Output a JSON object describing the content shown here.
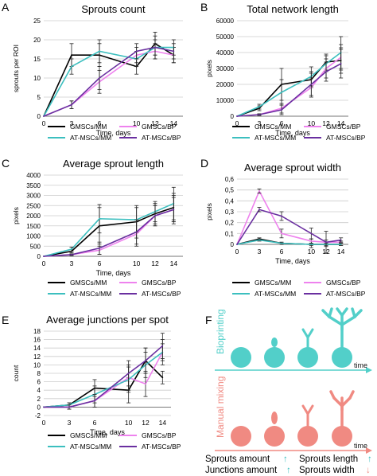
{
  "colors": {
    "gmsc_mm": "#000000",
    "gmsc_bp": "#ee82ee",
    "at_mm": "#3cbfbf",
    "at_bp": "#6a2fa0",
    "teal": "#52cfc9",
    "salmon": "#f08a82",
    "grid": "#cccccc"
  },
  "legend": [
    "GMSCs/MM",
    "GMSCs/BP",
    "AT-MSCs/MM",
    "AT-MSCs/BP"
  ],
  "chart_data": [
    {
      "panel": "A",
      "type": "line",
      "title": "Sprouts count",
      "xlabel": "Time, days",
      "ylabel": "sprouts per ROI",
      "x": [
        0,
        3,
        6,
        10,
        12,
        14
      ],
      "ylim": [
        0,
        25
      ],
      "yticks": [
        0,
        5,
        10,
        15,
        20,
        25
      ],
      "series": [
        {
          "name": "GMSCs/MM",
          "values": [
            0,
            16,
            16,
            13,
            19,
            16
          ],
          "err": [
            0,
            3,
            3,
            2,
            3,
            2
          ]
        },
        {
          "name": "GMSCs/BP",
          "values": [
            0,
            3,
            9,
            16,
            17,
            16
          ],
          "err": [
            0,
            1,
            3,
            2,
            2,
            2
          ]
        },
        {
          "name": "AT-MSCs/MM",
          "values": [
            0,
            13,
            17,
            15,
            18,
            18
          ],
          "err": [
            0,
            2,
            3,
            2,
            2,
            2
          ]
        },
        {
          "name": "AT-MSCs/BP",
          "values": [
            0,
            3,
            10,
            17,
            18,
            17
          ],
          "err": [
            0,
            1,
            3,
            2,
            3,
            2
          ]
        }
      ]
    },
    {
      "panel": "B",
      "type": "line",
      "title": "Total network length",
      "xlabel": "Time, days",
      "ylabel": "pixels",
      "x": [
        0,
        3,
        6,
        10,
        12,
        14
      ],
      "ylim": [
        0,
        60000
      ],
      "yticks": [
        0,
        10000,
        20000,
        30000,
        40000,
        50000,
        60000
      ],
      "series": [
        {
          "name": "GMSCs/MM",
          "values": [
            0,
            5000,
            20000,
            23000,
            34000,
            35000
          ],
          "err": [
            0,
            1500,
            10000,
            5000,
            5000,
            8000
          ]
        },
        {
          "name": "GMSCs/BP",
          "values": [
            0,
            1000,
            5000,
            18000,
            30000,
            37000
          ],
          "err": [
            0,
            500,
            3000,
            6000,
            6000,
            8000
          ]
        },
        {
          "name": "AT-MSCs/MM",
          "values": [
            0,
            6000,
            15000,
            25000,
            33000,
            40000
          ],
          "err": [
            0,
            1500,
            8000,
            6000,
            5000,
            10000
          ]
        },
        {
          "name": "AT-MSCs/BP",
          "values": [
            0,
            1000,
            4000,
            20000,
            28000,
            33000
          ],
          "err": [
            0,
            500,
            3000,
            7000,
            6000,
            9000
          ]
        }
      ]
    },
    {
      "panel": "C",
      "type": "line",
      "title": "Average sprout length",
      "xlabel": "Time, days",
      "ylabel": "pixels",
      "x": [
        0,
        3,
        6,
        10,
        12,
        14
      ],
      "ylim": [
        0,
        4000
      ],
      "yticks": [
        0,
        500,
        1000,
        1500,
        2000,
        2500,
        3000,
        3500,
        4000
      ],
      "series": [
        {
          "name": "GMSCs/MM",
          "values": [
            0,
            250,
            1500,
            1700,
            2100,
            2400
          ],
          "err": [
            0,
            80,
            900,
            800,
            500,
            700
          ]
        },
        {
          "name": "GMSCs/BP",
          "values": [
            0,
            80,
            300,
            1100,
            2000,
            2300
          ],
          "err": [
            0,
            40,
            200,
            600,
            500,
            600
          ]
        },
        {
          "name": "AT-MSCs/MM",
          "values": [
            0,
            350,
            1850,
            1800,
            2200,
            2600
          ],
          "err": [
            0,
            100,
            700,
            600,
            500,
            800
          ]
        },
        {
          "name": "AT-MSCs/BP",
          "values": [
            0,
            80,
            400,
            1200,
            2000,
            2300
          ],
          "err": [
            0,
            40,
            300,
            600,
            500,
            700
          ]
        }
      ]
    },
    {
      "panel": "D",
      "type": "line",
      "title": "Average sprout width",
      "xlabel": "Time, days",
      "ylabel": "pixels",
      "x": [
        0,
        3,
        6,
        10,
        12,
        14
      ],
      "ylim": [
        0,
        0.6
      ],
      "yticks": [
        0,
        0.1,
        0.2,
        0.3,
        0.4,
        0.5,
        0.6
      ],
      "ytick_labels": [
        "0",
        "0,1",
        "0,2",
        "0,3",
        "0,4",
        "0,5",
        "0,6"
      ],
      "series": [
        {
          "name": "GMSCs/MM",
          "values": [
            0,
            0.05,
            0.01,
            0,
            0,
            0
          ],
          "err": [
            0,
            0.01,
            0.01,
            0.03,
            0.02,
            0.01
          ]
        },
        {
          "name": "GMSCs/BP",
          "values": [
            0,
            0.49,
            0.1,
            0.03,
            0.02,
            0.02
          ],
          "err": [
            0,
            0.02,
            0.04,
            0.02,
            0.02,
            0.01
          ]
        },
        {
          "name": "AT-MSCs/MM",
          "values": [
            0,
            0.04,
            0.01,
            0,
            0,
            0
          ],
          "err": [
            0,
            0.01,
            0.01,
            0.01,
            0.01,
            0.01
          ]
        },
        {
          "name": "AT-MSCs/BP",
          "values": [
            0,
            0.32,
            0.26,
            0.1,
            0.02,
            0.04
          ],
          "err": [
            0,
            0.02,
            0.04,
            0.05,
            0.1,
            0.02
          ]
        }
      ]
    },
    {
      "panel": "E",
      "type": "line",
      "title": "Average junctions per spot",
      "xlabel": "Time, days",
      "ylabel": "count",
      "x": [
        0,
        3,
        6,
        10,
        12,
        14
      ],
      "ylim": [
        -2,
        18
      ],
      "yticks": [
        -2,
        0,
        2,
        4,
        6,
        8,
        10,
        12,
        14,
        16,
        18
      ],
      "series": [
        {
          "name": "GMSCs/MM",
          "values": [
            0,
            0.5,
            4.5,
            4,
            11,
            7
          ],
          "err": [
            0,
            0.5,
            2,
            3,
            3,
            1.5
          ]
        },
        {
          "name": "GMSCs/BP",
          "values": [
            0,
            0,
            1.5,
            7,
            5.5,
            13
          ],
          "err": [
            0,
            0.5,
            1.5,
            3,
            3,
            2
          ]
        },
        {
          "name": "AT-MSCs/MM",
          "values": [
            0,
            0.5,
            3,
            6.5,
            10,
            13
          ],
          "err": [
            0,
            0.5,
            2,
            3,
            3,
            3
          ]
        },
        {
          "name": "AT-MSCs/BP",
          "values": [
            0,
            0,
            1.5,
            8,
            11,
            14.5
          ],
          "err": [
            0,
            0.5,
            1.5,
            3,
            3,
            3
          ]
        }
      ]
    }
  ],
  "panel_f": {
    "label": "F",
    "bioprinting_label": "Bioprinting",
    "manual_mixing_label": "Manual mixing",
    "time_label": "time",
    "summary": [
      {
        "text": "Sprouts amount",
        "arrow": "↑",
        "arrow_color": "#3cbfbf"
      },
      {
        "text": "Sprouts length",
        "arrow": "↑",
        "arrow_color": "#3cbfbf"
      },
      {
        "text": "Junctions amount",
        "arrow": "↑",
        "arrow_color": "#3cbfbf"
      },
      {
        "text": "Sprouts width",
        "arrow": "↓",
        "arrow_color": "#f08a82"
      }
    ]
  }
}
